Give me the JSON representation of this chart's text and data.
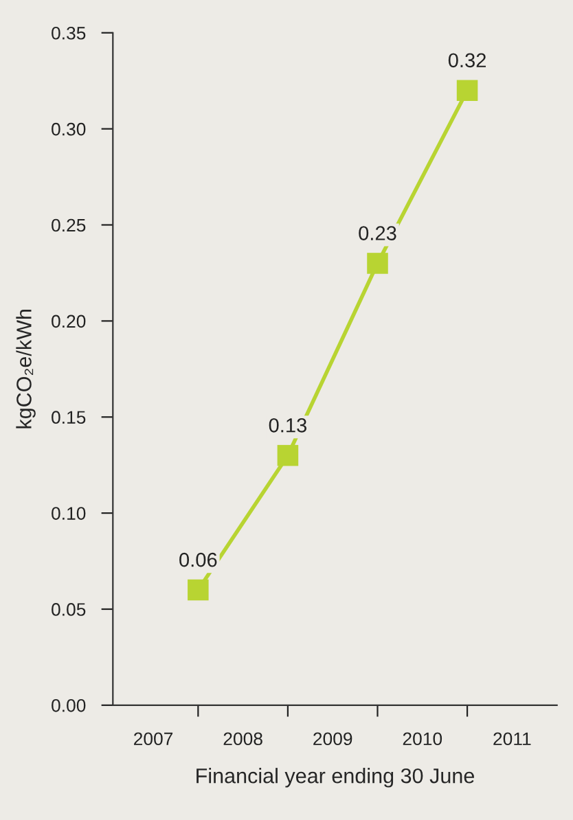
{
  "chart_data": {
    "type": "line",
    "xlabel": "Financial year ending 30 June",
    "ylabel": "kgCO₂e/kWh",
    "x": [
      2007.5,
      2008.5,
      2009.5,
      2010.5
    ],
    "series": [
      {
        "color": "#b8d432",
        "values": [
          0.06,
          0.13,
          0.23,
          0.32
        ]
      }
    ],
    "xlim": [
      2006.55,
      2011.5
    ],
    "xticks": [
      {
        "value": 2007,
        "label": "2007"
      },
      {
        "value": 2007.5,
        "label": null
      },
      {
        "value": 2008,
        "label": "2008"
      },
      {
        "value": 2008.5,
        "label": null
      },
      {
        "value": 2009,
        "label": "2009"
      },
      {
        "value": 2009.5,
        "label": null
      },
      {
        "value": 2010,
        "label": "2010"
      },
      {
        "value": 2010.5,
        "label": null
      },
      {
        "value": 2011,
        "label": "2011"
      }
    ],
    "ylim": [
      0,
      0.35
    ],
    "yticks": [
      {
        "value": 0,
        "label": "0.00"
      },
      {
        "value": 0.05,
        "label": "0.05"
      },
      {
        "value": 0.1,
        "label": "0.10"
      },
      {
        "value": 0.15,
        "label": "0.15"
      },
      {
        "value": 0.2,
        "label": "0.20"
      },
      {
        "value": 0.25,
        "label": "0.25"
      },
      {
        "value": 0.3,
        "label": "0.30"
      },
      {
        "value": 0.35,
        "label": "0.35"
      }
    ],
    "marker": "square",
    "line_style": "solid",
    "data_labels": true,
    "grid": false,
    "legend": false
  }
}
